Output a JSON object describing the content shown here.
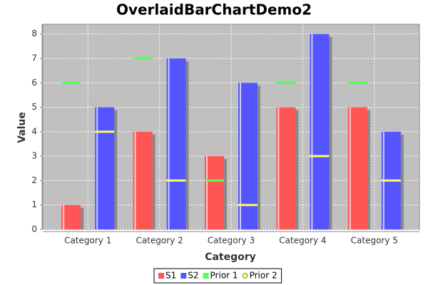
{
  "chart_data": {
    "type": "bar",
    "title": "OverlaidBarChartDemo2",
    "x_label": "Category",
    "y_label": "Value",
    "categories": [
      "Category 1",
      "Category 2",
      "Category 3",
      "Category 4",
      "Category 5"
    ],
    "series": [
      {
        "name": "S1",
        "color": "#ff5555",
        "style": "bar",
        "legend_shape": "square",
        "values": [
          1,
          4,
          3,
          5,
          5
        ]
      },
      {
        "name": "S2",
        "color": "#5555ff",
        "style": "bar",
        "legend_shape": "square",
        "values": [
          5,
          7,
          6,
          8,
          4
        ]
      },
      {
        "name": "Prior 1",
        "color": "#55ff55",
        "style": "level",
        "legend_shape": "square",
        "values": [
          6,
          7,
          2,
          6,
          6
        ]
      },
      {
        "name": "Prior 2",
        "color": "#ffff55",
        "style": "level",
        "legend_shape": "circle",
        "values": [
          4,
          2,
          1,
          3,
          2
        ]
      }
    ],
    "ylim": [
      0,
      8.4
    ],
    "yticks": [
      0,
      1,
      2,
      3,
      4,
      5,
      6,
      7,
      8
    ],
    "grid": true,
    "x_grid": true,
    "plot_background": "#c0c0c0",
    "legend_position": "bottom"
  }
}
